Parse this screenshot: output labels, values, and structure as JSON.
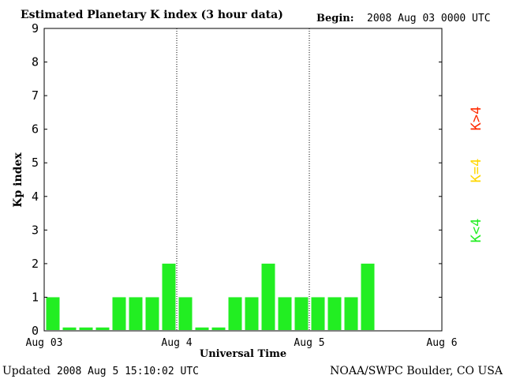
{
  "header": {
    "title": "Estimated Planetary K index (3 hour data)",
    "begin_label": "Begin:",
    "begin_value": "2008 Aug 03 0000 UTC"
  },
  "footer": {
    "updated_label": "Updated",
    "updated_value": "2008 Aug  5 15:10:02 UTC",
    "source": "NOAA/SWPC Boulder, CO USA"
  },
  "legend": {
    "items": [
      {
        "label": "K>4",
        "color": "#ff2a00"
      },
      {
        "label": "K=4",
        "color": "#ffd700"
      },
      {
        "label": "K<4",
        "color": "#22ee22"
      }
    ]
  },
  "chart_data": {
    "type": "bar",
    "xlabel": "Universal Time",
    "ylabel": "Kp index",
    "ylim": [
      0,
      9
    ],
    "yticks": [
      "0",
      "1",
      "2",
      "3",
      "4",
      "5",
      "6",
      "7",
      "8",
      "9"
    ],
    "xticks": [
      "Aug 03",
      "Aug 4",
      "Aug 5",
      "Aug 6"
    ],
    "bar_color": "#22ee22",
    "values": [
      1,
      0.1,
      0.1,
      0.1,
      1,
      1,
      1,
      2,
      1,
      0.1,
      0.1,
      1,
      1,
      2,
      1,
      1,
      1,
      1,
      1,
      2,
      null,
      null,
      null,
      null
    ]
  }
}
